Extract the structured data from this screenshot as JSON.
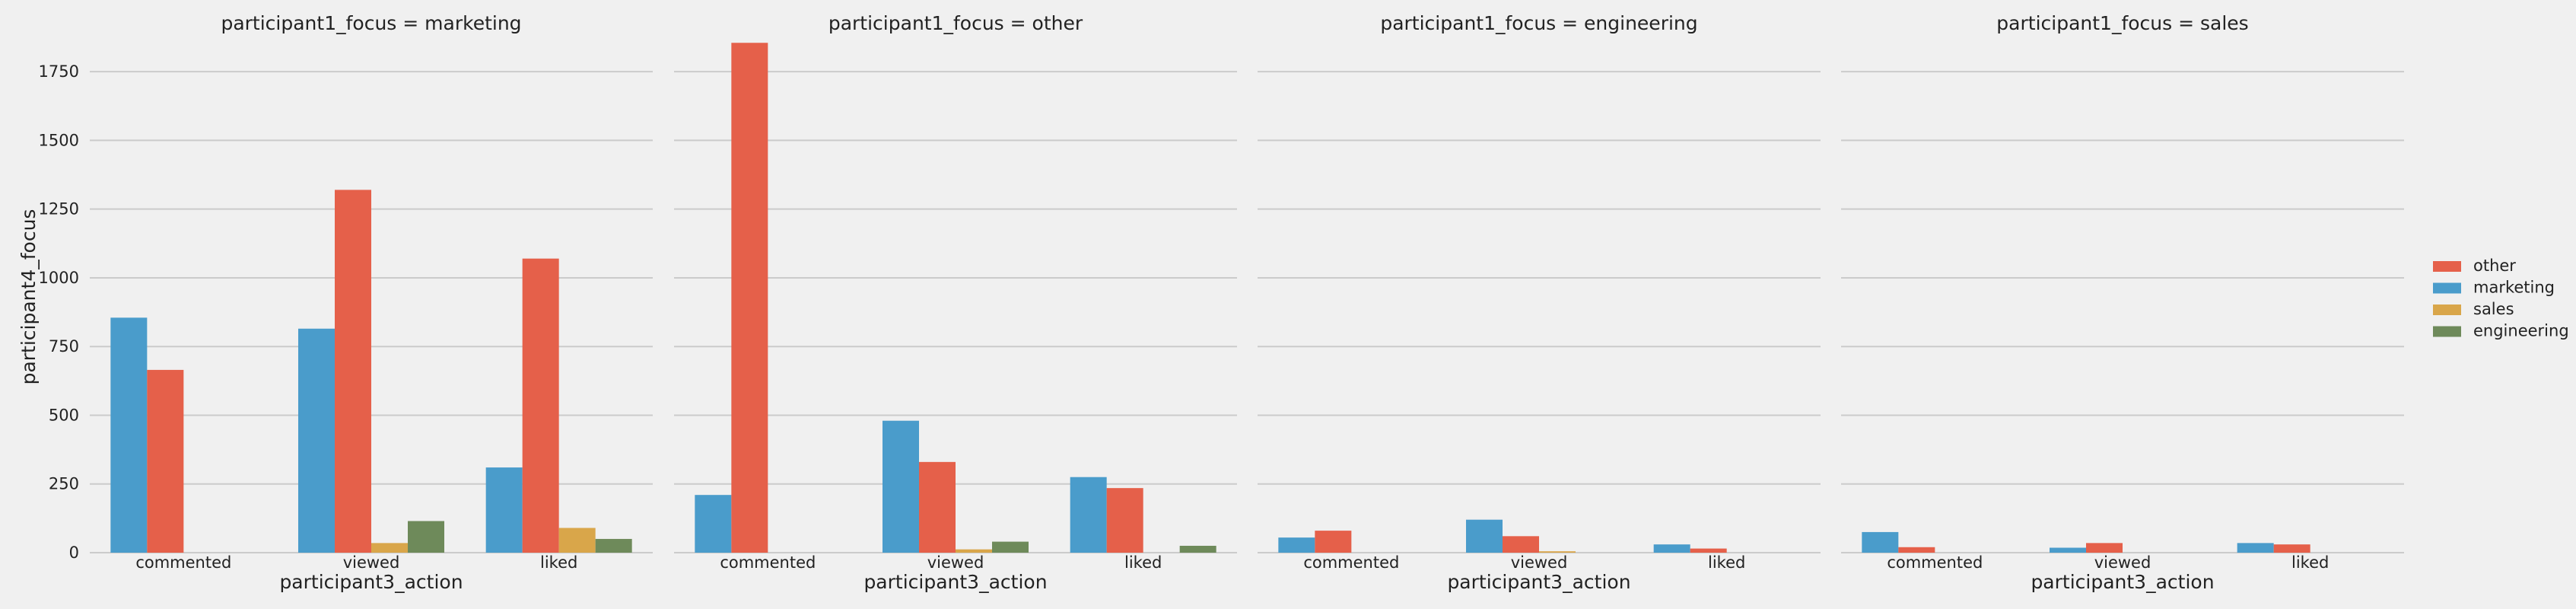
{
  "chart_data": {
    "type": "bar",
    "facet_variable": "participant1_focus",
    "x_categories": [
      "commented",
      "viewed",
      "liked"
    ],
    "xlabel": "participant3_action",
    "ylabel": "participant4_focus",
    "ylim": [
      0,
      1900
    ],
    "yticks": [
      0,
      250,
      500,
      750,
      1000,
      1250,
      1500,
      1750
    ],
    "grid": "horizontal",
    "legend_position": "right",
    "colors": {
      "other": "#e5604a",
      "marketing": "#4a9ccb",
      "sales": "#d9a64a",
      "engineering": "#6e8a5a"
    },
    "hue_order": [
      "marketing",
      "other",
      "sales",
      "engineering"
    ],
    "legend_order": [
      "other",
      "marketing",
      "sales",
      "engineering"
    ],
    "panels": [
      {
        "title": "participant1_focus = marketing",
        "series": [
          {
            "name": "marketing",
            "values": [
              855,
              815,
              310
            ]
          },
          {
            "name": "other",
            "values": [
              665,
              1320,
              1070
            ]
          },
          {
            "name": "sales",
            "values": [
              0,
              35,
              90
            ]
          },
          {
            "name": "engineering",
            "values": [
              0,
              115,
              50
            ]
          }
        ]
      },
      {
        "title": "participant1_focus = other",
        "series": [
          {
            "name": "marketing",
            "values": [
              210,
              480,
              275
            ]
          },
          {
            "name": "other",
            "values": [
              1855,
              330,
              235
            ]
          },
          {
            "name": "sales",
            "values": [
              0,
              12,
              0
            ]
          },
          {
            "name": "engineering",
            "values": [
              0,
              40,
              25
            ]
          }
        ]
      },
      {
        "title": "participant1_focus = engineering",
        "series": [
          {
            "name": "marketing",
            "values": [
              55,
              120,
              30
            ]
          },
          {
            "name": "other",
            "values": [
              80,
              60,
              15
            ]
          },
          {
            "name": "sales",
            "values": [
              0,
              5,
              0
            ]
          },
          {
            "name": "engineering",
            "values": [
              0,
              0,
              0
            ]
          }
        ]
      },
      {
        "title": "participant1_focus = sales",
        "series": [
          {
            "name": "marketing",
            "values": [
              75,
              18,
              35
            ]
          },
          {
            "name": "other",
            "values": [
              20,
              35,
              30
            ]
          },
          {
            "name": "sales",
            "values": [
              0,
              0,
              0
            ]
          },
          {
            "name": "engineering",
            "values": [
              0,
              0,
              0
            ]
          }
        ]
      }
    ]
  }
}
